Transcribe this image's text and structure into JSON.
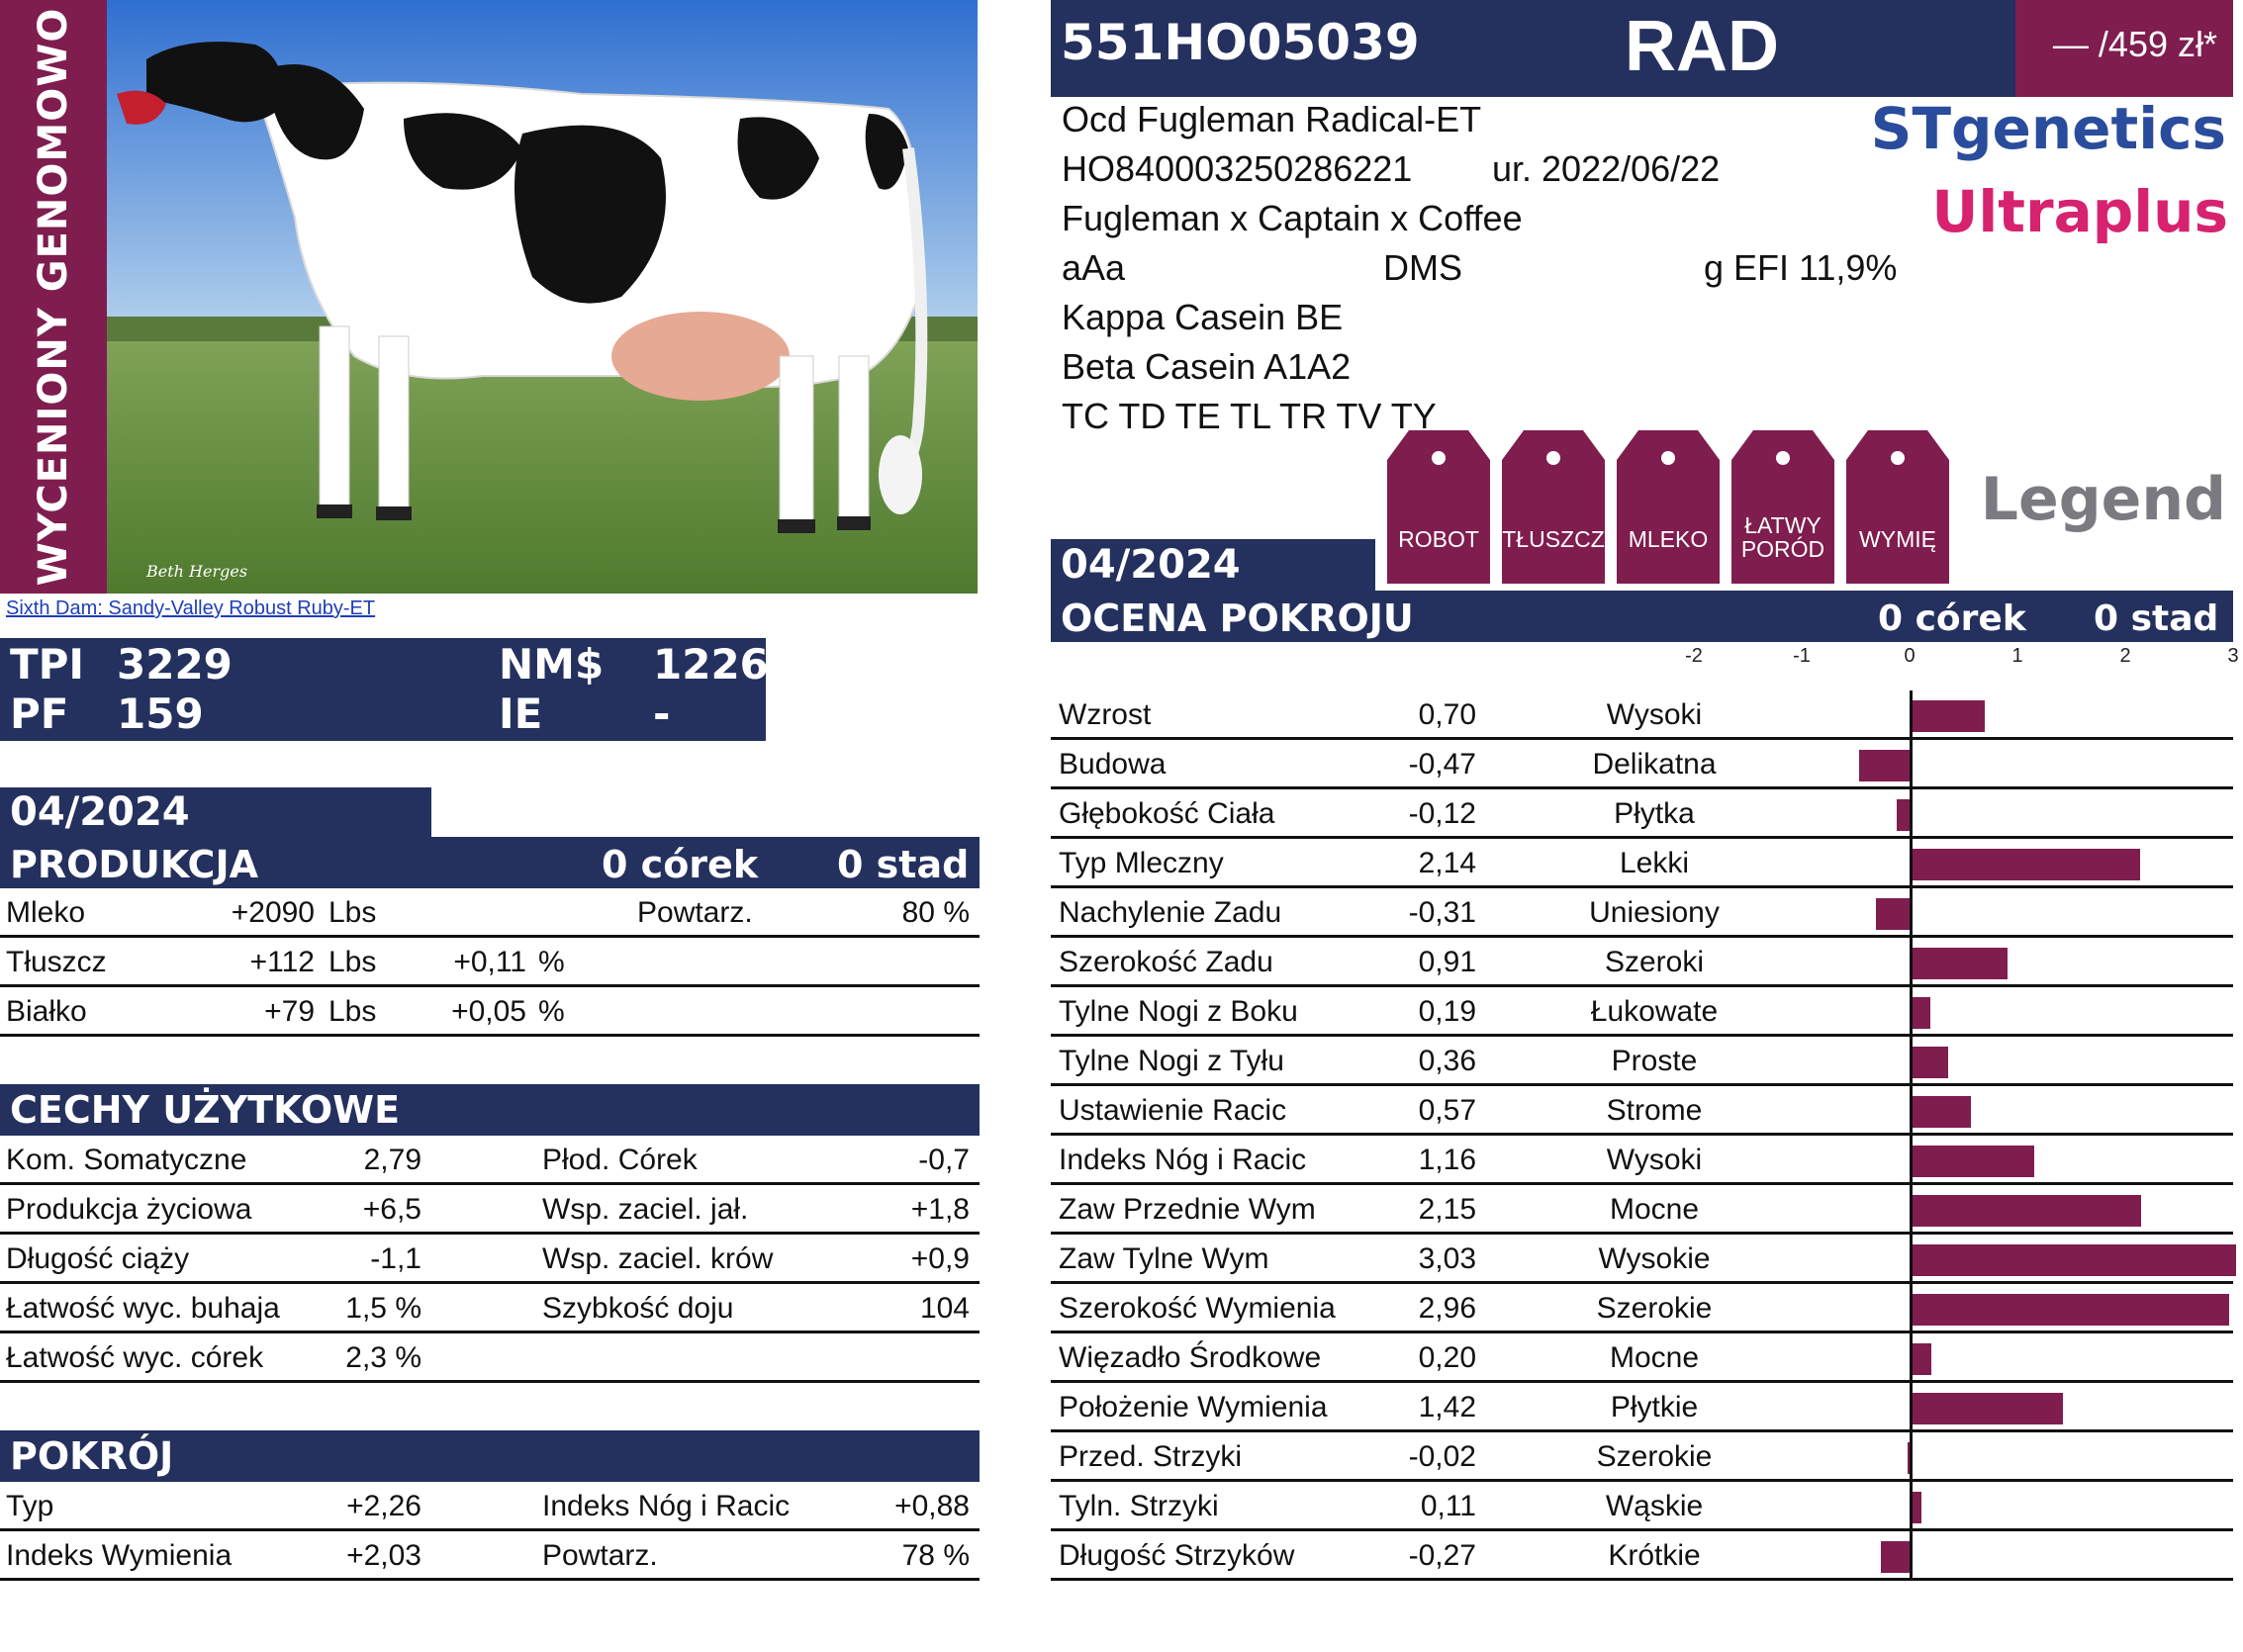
{
  "side_label": "WYCENIONY GENOMOWO",
  "photo": {
    "signature": "Beth Herges"
  },
  "photo_caption": "Sixth Dam: Sandy-Valley Robust Ruby-ET",
  "indexes": {
    "tpi_label": "TPI",
    "tpi_value": "3229",
    "pf_label": "PF",
    "pf_value": "159",
    "nm_label": "NM$",
    "nm_value": "1226",
    "ie_label": "IE",
    "ie_value": "-"
  },
  "production": {
    "date": "04/2024",
    "title": "PRODUKCJA",
    "daughters": "0 córek",
    "herds": "0 stad",
    "rows": [
      {
        "name": "Mleko",
        "value": "+2090",
        "unit": "Lbs",
        "pct": "",
        "pct_unit": "",
        "extra_label": "Powtarz.",
        "extra_value": "80 %"
      },
      {
        "name": "Tłuszcz",
        "value": "+112",
        "unit": "Lbs",
        "pct": "+0,11",
        "pct_unit": "%",
        "extra_label": "",
        "extra_value": ""
      },
      {
        "name": "Białko",
        "value": "+79",
        "unit": "Lbs",
        "pct": "+0,05",
        "pct_unit": "%",
        "extra_label": "",
        "extra_value": ""
      }
    ]
  },
  "functional": {
    "title": "CECHY UŻYTKOWE",
    "rows": [
      {
        "l_name": "Kom. Somatyczne",
        "l_value": "2,79",
        "r_name": "Płod. Córek",
        "r_value": "-0,7"
      },
      {
        "l_name": "Produkcja życiowa",
        "l_value": "+6,5",
        "r_name": "Wsp. zaciel. jał.",
        "r_value": "+1,8"
      },
      {
        "l_name": "Długość ciąży",
        "l_value": "-1,1",
        "r_name": "Wsp. zaciel. krów",
        "r_value": "+0,9"
      },
      {
        "l_name": "Łatwość wyc. buhaja",
        "l_value": "1,5 %",
        "r_name": "Szybkość doju",
        "r_value": "104"
      },
      {
        "l_name": "Łatwość wyc. córek",
        "l_value": "2,3 %",
        "r_name": "",
        "r_value": ""
      }
    ]
  },
  "conformation": {
    "title": "POKRÓJ",
    "rows": [
      {
        "l_name": "Typ",
        "l_value": "+2,26",
        "r_name": "Indeks Nóg i Racic",
        "r_value": "+0,88"
      },
      {
        "l_name": "Indeks Wymienia",
        "l_value": "+2,03",
        "r_name": "Powtarz.",
        "r_value": "78 %"
      }
    ]
  },
  "bull": {
    "code": "551HO05039",
    "short_name": "RAD",
    "price": "— /459 zł*",
    "full_name": "Ocd Fugleman Radical-ET",
    "reg_number": "HO840003250286221",
    "birth": "ur. 2022/06/22",
    "pedigree": "Fugleman x Captain x Coffee",
    "beta_lacto": "aAa",
    "haplotype": "DMS",
    "efi": "g EFI 11,9%",
    "kappa": "Kappa Casein BE",
    "beta": "Beta Casein A1A2",
    "tests": "TC TD TE TL TR TV TY"
  },
  "brands": {
    "stgenetics": "STgenetics",
    "ultraplus": "Ultraplus",
    "legend": "Legend"
  },
  "tags": [
    "ROBOT",
    "TŁUSZCZ",
    "MLEKO",
    "ŁATWY PORÓD",
    "WYMIĘ"
  ],
  "colors": {
    "navy": "#24305e",
    "plum": "#7f1d4f"
  },
  "linear": {
    "date": "04/2024",
    "title": "OCENA POKROJU",
    "daughters": "0 córek",
    "herds": "0 stad",
    "axis_ticks": [
      "-2",
      "-1",
      "0",
      "1",
      "2",
      "3"
    ]
  },
  "chart_data": {
    "type": "bar",
    "orientation": "horizontal",
    "xlim": [
      -2,
      3
    ],
    "x_ticks": [
      -2,
      -1,
      0,
      1,
      2,
      3
    ],
    "categories": [
      "Wzrost",
      "Budowa",
      "Głębokość Ciała",
      "Typ Mleczny",
      "Nachylenie Zadu",
      "Szerokość Zadu",
      "Tylne Nogi z Boku",
      "Tylne Nogi z Tyłu",
      "Ustawienie Racic",
      "Indeks Nóg i Racic",
      "Zaw Przednie Wym",
      "Zaw Tylne Wym",
      "Szerokość Wymienia",
      "Więzadło Środkowe",
      "Położenie Wymienia",
      "Przed. Strzyki",
      "Tyln. Strzyki",
      "Długość Strzyków"
    ],
    "values": [
      0.7,
      -0.47,
      -0.12,
      2.14,
      -0.31,
      0.91,
      0.19,
      0.36,
      0.57,
      1.16,
      2.15,
      3.03,
      2.96,
      0.2,
      1.42,
      -0.02,
      0.11,
      -0.27
    ],
    "value_labels": [
      "0,70",
      "-0,47",
      "-0,12",
      "2,14",
      "-0,31",
      "0,91",
      "0,19",
      "0,36",
      "0,57",
      "1,16",
      "2,15",
      "3,03",
      "2,96",
      "0,20",
      "1,42",
      "-0,02",
      "0,11",
      "-0,27"
    ],
    "descriptors": [
      "Wysoki",
      "Delikatna",
      "Płytka",
      "Lekki",
      "Uniesiony",
      "Szeroki",
      "Łukowate",
      "Proste",
      "Strome",
      "Wysoki",
      "Mocne",
      "Wysokie",
      "Szerokie",
      "Mocne",
      "Płytkie",
      "Szerokie",
      "Wąskie",
      "Krótkie"
    ],
    "bar_color": "#7f1d4f"
  }
}
